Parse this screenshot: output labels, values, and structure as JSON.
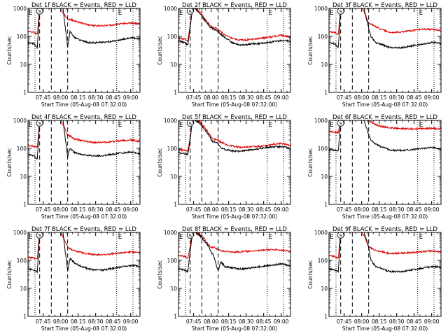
{
  "figure": {
    "panel_titles": [
      "Det 1f BLACK = Events, RED = LLD",
      "Det 2f BLACK = Events, RED = LLD",
      "Det 3f BLACK = Events, RED = LLD",
      "Det 4f BLACK = Events, RED = LLD",
      "Det 5f BLACK = Events, RED = LLD",
      "Det 6f BLACK = Events, RED = LLD",
      "Det 7f BLACK = Events, RED = LLD",
      "Det 8f BLACK = Events, RED = LLD",
      "Det 9f BLACK = Events, RED = LLD"
    ],
    "xlabel": "Start Time (05-Aug-08 07:32:00)",
    "ylabel": "Counts/sec",
    "x_ticklabels": [
      "07:45",
      "08:00",
      "08:15",
      "08:30",
      "08:45",
      "09:00"
    ],
    "y_ticklabels": [
      "1",
      "10",
      "100",
      "1000"
    ],
    "markers": {
      "S": "S",
      "E": "E"
    },
    "colors": {
      "events": "#000000",
      "lld": "#e00000"
    }
  },
  "chart_data": {
    "type": "line",
    "panels": 9,
    "x_unit": "minutes after 07:32:00",
    "xlim": [
      0,
      96
    ],
    "ylim": [
      1,
      1000
    ],
    "y_scale": "log",
    "x_ticks": [
      13,
      28,
      43,
      58,
      73,
      88
    ],
    "vertical_lines": {
      "dashed": [
        10,
        20,
        34
      ],
      "dotted": [
        6,
        76,
        90
      ]
    },
    "series": [
      {
        "name": "Events",
        "color": "#000000",
        "x": [
          0,
          5,
          8,
          10,
          12,
          14,
          18,
          22,
          26,
          28,
          30,
          34,
          36,
          40,
          46,
          52,
          58,
          64,
          70,
          76,
          82,
          88,
          92,
          96
        ],
        "per_panel": [
          [
            60,
            55,
            40,
            1000,
            1000,
            1000,
            1000,
            1000,
            1000,
            1000,
            1000,
            40,
            150,
            90,
            70,
            60,
            60,
            62,
            65,
            70,
            80,
            90,
            85,
            80
          ],
          [
            70,
            60,
            50,
            200,
            1000,
            1000,
            700,
            400,
            250,
            200,
            180,
            150,
            120,
            90,
            60,
            50,
            50,
            55,
            55,
            60,
            65,
            70,
            70,
            65
          ],
          [
            60,
            55,
            40,
            1000,
            1000,
            1000,
            1000,
            1000,
            1000,
            1000,
            1000,
            200,
            100,
            60,
            50,
            40,
            40,
            40,
            45,
            50,
            55,
            60,
            60,
            55
          ],
          [
            60,
            55,
            40,
            1000,
            1000,
            1000,
            1000,
            1000,
            1000,
            1000,
            1000,
            50,
            100,
            70,
            60,
            55,
            55,
            55,
            60,
            65,
            70,
            75,
            70,
            65
          ],
          [
            70,
            65,
            60,
            200,
            1000,
            1000,
            800,
            500,
            300,
            200,
            170,
            150,
            110,
            90,
            80,
            80,
            85,
            90,
            100,
            110,
            115,
            115,
            110,
            100
          ],
          [
            90,
            85,
            80,
            1000,
            1000,
            1000,
            1000,
            1000,
            1000,
            1000,
            1000,
            300,
            200,
            140,
            110,
            90,
            85,
            85,
            90,
            95,
            100,
            110,
            100,
            95
          ],
          [
            50,
            45,
            40,
            1000,
            1000,
            1000,
            1000,
            1000,
            1000,
            1000,
            1000,
            40,
            120,
            80,
            60,
            50,
            45,
            45,
            50,
            55,
            60,
            65,
            65,
            60
          ],
          [
            50,
            45,
            40,
            200,
            1000,
            1000,
            800,
            500,
            300,
            200,
            150,
            40,
            90,
            60,
            55,
            50,
            50,
            55,
            60,
            65,
            70,
            75,
            70,
            65
          ],
          [
            50,
            45,
            40,
            1000,
            1000,
            1000,
            1000,
            1000,
            1000,
            1000,
            1000,
            300,
            100,
            60,
            50,
            40,
            40,
            40,
            45,
            50,
            55,
            60,
            60,
            55
          ]
        ]
      },
      {
        "name": "LLD",
        "color": "#e00000",
        "x": [
          0,
          5,
          8,
          10,
          12,
          14,
          18,
          22,
          26,
          28,
          30,
          34,
          36,
          40,
          46,
          52,
          58,
          64,
          70,
          76,
          82,
          88,
          92,
          96
        ],
        "per_panel": [
          [
            150,
            140,
            120,
            1000,
            1000,
            1000,
            1000,
            1000,
            1000,
            1000,
            700,
            400,
            400,
            350,
            300,
            250,
            240,
            240,
            250,
            270,
            290,
            300,
            290,
            280
          ],
          [
            90,
            80,
            70,
            250,
            1000,
            1000,
            800,
            450,
            280,
            230,
            210,
            180,
            150,
            110,
            85,
            75,
            75,
            80,
            85,
            90,
            100,
            110,
            100,
            95
          ],
          [
            150,
            140,
            120,
            1000,
            1000,
            1000,
            1000,
            1000,
            1000,
            1000,
            800,
            300,
            280,
            220,
            170,
            140,
            140,
            150,
            160,
            170,
            180,
            180,
            170,
            160
          ],
          [
            130,
            120,
            110,
            1000,
            1000,
            1000,
            1000,
            1000,
            1000,
            1000,
            700,
            300,
            280,
            220,
            190,
            170,
            165,
            165,
            170,
            180,
            190,
            200,
            190,
            170
          ],
          [
            90,
            85,
            80,
            250,
            1000,
            1000,
            900,
            600,
            350,
            250,
            220,
            200,
            170,
            140,
            120,
            110,
            110,
            115,
            120,
            130,
            140,
            150,
            140,
            130
          ],
          [
            400,
            380,
            380,
            1000,
            1000,
            1000,
            1000,
            1000,
            1000,
            1000,
            1000,
            1000,
            900,
            700,
            600,
            550,
            520,
            500,
            500,
            500,
            510,
            520,
            510,
            500
          ],
          [
            130,
            120,
            110,
            1000,
            1000,
            1000,
            1000,
            1000,
            1000,
            1000,
            700,
            300,
            260,
            220,
            190,
            170,
            160,
            160,
            170,
            180,
            190,
            200,
            190,
            180
          ],
          [
            150,
            140,
            120,
            300,
            1000,
            1000,
            900,
            600,
            350,
            280,
            300,
            240,
            230,
            210,
            200,
            200,
            210,
            220,
            230,
            240,
            240,
            230,
            220,
            210
          ],
          [
            150,
            140,
            120,
            1000,
            1000,
            1000,
            1000,
            1000,
            1000,
            1000,
            800,
            300,
            280,
            230,
            200,
            180,
            180,
            185,
            190,
            200,
            210,
            220,
            210,
            200
          ]
        ]
      }
    ]
  }
}
